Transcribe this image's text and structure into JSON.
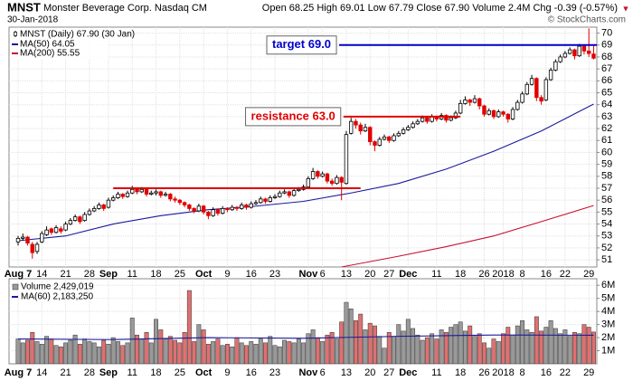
{
  "chart_data": {
    "type": "candlestick",
    "symbol": "MNST",
    "company": "Monster Beverage Corp. Nasdaq CM",
    "date": "30-Jan-2018",
    "quote": "Open 68.25 High 69.01 Low 67.79 Close 67.90 Volume 2.4M Chg -0.39 (-0.57%)",
    "change_marker": "▼",
    "credit": "© StockCharts.com",
    "legend_title": "MNST (Daily) 67.90 (30 Jan)",
    "grid": true,
    "up_color": "#000000",
    "down_color": "#e00000",
    "xticks": [
      {
        "value": 0,
        "label": "Aug 7"
      },
      {
        "value": 5,
        "label": "14"
      },
      {
        "value": 10,
        "label": "21"
      },
      {
        "value": 15,
        "label": "28"
      },
      {
        "value": 19,
        "label": "Sep"
      },
      {
        "value": 24,
        "label": "11"
      },
      {
        "value": 29,
        "label": "18"
      },
      {
        "value": 34,
        "label": "25"
      },
      {
        "value": 39,
        "label": "Oct"
      },
      {
        "value": 44,
        "label": "9"
      },
      {
        "value": 49,
        "label": "16"
      },
      {
        "value": 54,
        "label": "23"
      },
      {
        "value": 61,
        "label": "Nov"
      },
      {
        "value": 64,
        "label": "6"
      },
      {
        "value": 69,
        "label": "13"
      },
      {
        "value": 74,
        "label": "20"
      },
      {
        "value": 78,
        "label": "27"
      },
      {
        "value": 82,
        "label": "Dec"
      },
      {
        "value": 88,
        "label": "11"
      },
      {
        "value": 93,
        "label": "18"
      },
      {
        "value": 98,
        "label": "26"
      },
      {
        "value": 102,
        "label": "2018"
      },
      {
        "value": 106,
        "label": "8"
      },
      {
        "value": 111,
        "label": "16"
      },
      {
        "value": 115,
        "label": "22"
      },
      {
        "value": 120,
        "label": "29"
      }
    ],
    "ylim": [
      50.4,
      70.5
    ],
    "yticks": [
      51,
      52,
      53,
      54,
      55,
      56,
      57,
      58,
      59,
      60,
      61,
      62,
      63,
      64,
      65,
      66,
      67,
      68,
      69,
      70
    ],
    "ohlc": [
      [
        52.5,
        53.0,
        52.2,
        52.8
      ],
      [
        52.8,
        53.2,
        52.6,
        52.9
      ],
      [
        52.9,
        53.0,
        52.2,
        52.4
      ],
      [
        52.3,
        52.5,
        51.1,
        51.6
      ],
      [
        51.7,
        52.5,
        51.5,
        52.3
      ],
      [
        52.5,
        53.4,
        52.4,
        53.2
      ],
      [
        53.1,
        53.8,
        53.0,
        53.5
      ],
      [
        53.6,
        53.7,
        53.1,
        53.3
      ],
      [
        53.3,
        53.9,
        53.2,
        53.7
      ],
      [
        53.6,
        53.8,
        53.2,
        53.4
      ],
      [
        53.5,
        54.2,
        53.4,
        54.0
      ],
      [
        54.0,
        54.5,
        53.9,
        54.3
      ],
      [
        54.3,
        54.8,
        54.2,
        54.6
      ],
      [
        54.6,
        54.7,
        54.0,
        54.2
      ],
      [
        54.3,
        55.0,
        54.2,
        54.8
      ],
      [
        54.8,
        55.3,
        54.7,
        55.1
      ],
      [
        55.1,
        55.5,
        55.0,
        55.3
      ],
      [
        55.3,
        55.8,
        55.2,
        55.6
      ],
      [
        55.6,
        55.7,
        55.1,
        55.3
      ],
      [
        55.4,
        56.2,
        55.3,
        56.0
      ],
      [
        56.0,
        56.4,
        55.9,
        56.2
      ],
      [
        56.2,
        56.7,
        56.1,
        56.5
      ],
      [
        56.5,
        56.6,
        56.1,
        56.3
      ],
      [
        56.3,
        56.8,
        56.2,
        56.6
      ],
      [
        56.6,
        57.2,
        56.5,
        56.9
      ],
      [
        56.9,
        57.0,
        56.5,
        56.7
      ],
      [
        56.7,
        57.1,
        56.6,
        56.9
      ],
      [
        56.9,
        57.0,
        56.3,
        56.5
      ],
      [
        56.5,
        56.8,
        56.4,
        56.6
      ],
      [
        56.6,
        56.9,
        56.4,
        56.7
      ],
      [
        56.7,
        56.8,
        56.2,
        56.4
      ],
      [
        56.4,
        56.7,
        56.3,
        56.5
      ],
      [
        56.5,
        56.6,
        55.9,
        56.1
      ],
      [
        56.1,
        56.3,
        55.8,
        56.0
      ],
      [
        56.0,
        56.1,
        55.6,
        55.8
      ],
      [
        55.8,
        55.9,
        55.4,
        55.6
      ],
      [
        55.6,
        55.7,
        55.1,
        55.3
      ],
      [
        55.3,
        55.4,
        54.9,
        55.1
      ],
      [
        55.1,
        55.7,
        55.0,
        55.5
      ],
      [
        55.5,
        55.6,
        54.8,
        55.0
      ],
      [
        55.0,
        55.1,
        54.4,
        54.7
      ],
      [
        54.7,
        55.4,
        54.6,
        55.2
      ],
      [
        55.2,
        55.3,
        54.7,
        54.9
      ],
      [
        54.9,
        55.5,
        54.8,
        55.3
      ],
      [
        55.3,
        55.4,
        55.0,
        55.2
      ],
      [
        55.2,
        55.6,
        55.1,
        55.4
      ],
      [
        55.4,
        55.5,
        55.1,
        55.3
      ],
      [
        55.3,
        55.8,
        55.2,
        55.6
      ],
      [
        55.6,
        55.7,
        55.2,
        55.4
      ],
      [
        55.4,
        55.9,
        55.3,
        55.7
      ],
      [
        55.7,
        56.0,
        55.6,
        55.8
      ],
      [
        55.8,
        56.3,
        55.7,
        56.1
      ],
      [
        56.1,
        56.2,
        55.7,
        55.9
      ],
      [
        55.9,
        56.4,
        55.8,
        56.2
      ],
      [
        56.2,
        56.5,
        56.1,
        56.3
      ],
      [
        56.3,
        56.8,
        56.2,
        56.6
      ],
      [
        56.6,
        56.9,
        56.5,
        56.7
      ],
      [
        56.7,
        56.8,
        56.2,
        56.4
      ],
      [
        56.4,
        57.0,
        56.3,
        56.8
      ],
      [
        56.8,
        57.1,
        56.7,
        56.9
      ],
      [
        56.9,
        57.3,
        56.8,
        57.1
      ],
      [
        57.1,
        58.0,
        57.0,
        57.8
      ],
      [
        57.8,
        58.7,
        57.7,
        58.4
      ],
      [
        58.4,
        58.5,
        57.8,
        58.0
      ],
      [
        58.0,
        58.4,
        57.9,
        58.2
      ],
      [
        58.2,
        58.3,
        57.4,
        57.6
      ],
      [
        57.6,
        57.8,
        57.2,
        57.4
      ],
      [
        57.4,
        58.1,
        57.3,
        57.9
      ],
      [
        57.9,
        58.0,
        56.0,
        57.5
      ],
      [
        57.4,
        61.8,
        57.3,
        61.5
      ],
      [
        61.6,
        62.9,
        61.5,
        62.6
      ],
      [
        62.6,
        62.8,
        62.0,
        62.3
      ],
      [
        62.3,
        62.5,
        61.5,
        61.8
      ],
      [
        61.8,
        62.4,
        61.7,
        62.1
      ],
      [
        62.1,
        62.2,
        60.6,
        60.9
      ],
      [
        60.9,
        61.0,
        60.1,
        60.6
      ],
      [
        60.6,
        61.3,
        60.5,
        61.1
      ],
      [
        61.1,
        61.5,
        61.0,
        61.3
      ],
      [
        61.3,
        61.4,
        60.8,
        61.0
      ],
      [
        61.0,
        61.6,
        60.9,
        61.4
      ],
      [
        61.4,
        61.8,
        61.3,
        61.6
      ],
      [
        61.6,
        62.1,
        61.5,
        61.9
      ],
      [
        61.9,
        62.3,
        61.8,
        62.1
      ],
      [
        62.1,
        62.6,
        62.0,
        62.4
      ],
      [
        62.4,
        62.8,
        62.3,
        62.6
      ],
      [
        62.6,
        63.1,
        62.5,
        62.9
      ],
      [
        62.9,
        63.0,
        62.4,
        62.6
      ],
      [
        62.6,
        63.2,
        62.5,
        63.0
      ],
      [
        63.0,
        63.1,
        62.6,
        62.8
      ],
      [
        62.8,
        63.3,
        62.7,
        63.1
      ],
      [
        63.1,
        63.2,
        62.5,
        62.7
      ],
      [
        62.7,
        63.1,
        62.6,
        62.9
      ],
      [
        62.9,
        63.5,
        62.8,
        63.3
      ],
      [
        63.3,
        64.4,
        63.2,
        64.1
      ],
      [
        64.1,
        64.7,
        64.0,
        64.4
      ],
      [
        64.4,
        64.5,
        63.9,
        64.2
      ],
      [
        64.2,
        64.8,
        64.1,
        64.5
      ],
      [
        64.5,
        64.6,
        63.6,
        63.9
      ],
      [
        63.9,
        64.0,
        63.0,
        63.2
      ],
      [
        63.2,
        63.7,
        63.1,
        63.5
      ],
      [
        63.5,
        63.6,
        62.8,
        63.0
      ],
      [
        63.0,
        63.6,
        62.9,
        63.4
      ],
      [
        63.4,
        63.5,
        63.0,
        63.2
      ],
      [
        63.2,
        63.3,
        62.5,
        62.8
      ],
      [
        62.8,
        63.8,
        62.7,
        63.6
      ],
      [
        63.6,
        64.4,
        63.5,
        64.2
      ],
      [
        64.2,
        65.1,
        64.1,
        64.9
      ],
      [
        64.9,
        65.9,
        64.8,
        65.7
      ],
      [
        65.7,
        66.5,
        65.6,
        66.2
      ],
      [
        66.2,
        66.3,
        64.3,
        64.6
      ],
      [
        64.6,
        64.8,
        64.0,
        64.3
      ],
      [
        64.4,
        66.3,
        64.3,
        66.1
      ],
      [
        66.1,
        67.1,
        66.0,
        66.9
      ],
      [
        66.9,
        67.8,
        66.8,
        67.6
      ],
      [
        67.6,
        68.2,
        67.5,
        68.0
      ],
      [
        68.0,
        68.5,
        67.9,
        68.3
      ],
      [
        68.3,
        68.8,
        68.2,
        68.6
      ],
      [
        68.6,
        68.7,
        67.8,
        68.1
      ],
      [
        68.1,
        69.1,
        68.0,
        68.9
      ],
      [
        68.9,
        69.0,
        68.2,
        68.5
      ],
      [
        68.5,
        70.4,
        68.0,
        68.29
      ],
      [
        68.25,
        69.01,
        67.79,
        67.9
      ]
    ],
    "series": [
      {
        "name": "MA(50) 64.05",
        "color": "#1a1a9c",
        "x": [
          0,
          10,
          20,
          30,
          40,
          50,
          60,
          70,
          80,
          90,
          100,
          110,
          121
        ],
        "values": [
          52.6,
          53.0,
          54.0,
          54.7,
          55.2,
          55.5,
          55.9,
          56.6,
          57.4,
          58.6,
          60.1,
          61.8,
          64.05
        ]
      },
      {
        "name": "MA(200) 55.55",
        "color": "#c8102e",
        "x": [
          68,
          80,
          90,
          100,
          110,
          121
        ],
        "values": [
          50.4,
          51.3,
          52.1,
          53.0,
          54.2,
          55.55
        ]
      }
    ],
    "annotations": [
      {
        "label": "target 69.0",
        "value": 69.0,
        "start": 67.5,
        "end": 121.7,
        "color": "#0000cc"
      },
      {
        "label": "resistance 63.0",
        "value": 63.0,
        "start": 68.4,
        "end": 93,
        "color": "#e00000"
      },
      {
        "value": 57.0,
        "start": 20,
        "end": 72,
        "color": "#e00000"
      }
    ],
    "volume": {
      "name": "Volume 2,429,019",
      "ylim": [
        0,
        6500000
      ],
      "yticks": [
        {
          "value": 1000000,
          "label": "1M"
        },
        {
          "value": 2000000,
          "label": "2M"
        },
        {
          "value": 3000000,
          "label": "3M"
        },
        {
          "value": 4000000,
          "label": "4M"
        },
        {
          "value": 5000000,
          "label": "5M"
        },
        {
          "value": 6000000,
          "label": "6M"
        }
      ],
      "up_color": "#999999",
      "down_color": "#e07070",
      "values": [
        1900000,
        1600000,
        1800000,
        2400000,
        1700000,
        1500000,
        2100000,
        1900000,
        1400000,
        1300000,
        1600000,
        1800000,
        2200000,
        1500000,
        1900000,
        1700000,
        1600000,
        1300000,
        1800000,
        1500000,
        2000000,
        1700000,
        1400000,
        1600000,
        3500000,
        2200000,
        1900000,
        2400000,
        1600000,
        3400000,
        2600000,
        1900000,
        2100000,
        1800000,
        1600000,
        2400000,
        5600000,
        1700000,
        3000000,
        2600000,
        1500000,
        1700000,
        1900000,
        1400000,
        1500000,
        1300000,
        2000000,
        1600000,
        1400000,
        1700000,
        1500000,
        1900000,
        1600000,
        2100000,
        1400000,
        1300000,
        1800000,
        1700000,
        1600000,
        1900000,
        1600000,
        2300000,
        2600000,
        2000000,
        1700000,
        2200000,
        2400000,
        1900000,
        3200000,
        4700000,
        4200000,
        3300000,
        3800000,
        2600000,
        3100000,
        2900000,
        2100000,
        1200000,
        2400000,
        2100000,
        3000000,
        2500000,
        3400000,
        2700000,
        2200000,
        1800000,
        2000000,
        2300000,
        1900000,
        2600000,
        2400000,
        2800000,
        3000000,
        3200000,
        2500000,
        2900000,
        2100000,
        2300000,
        1600000,
        1200000,
        1900000,
        1700000,
        2300000,
        2800000,
        2200000,
        2900000,
        3300000,
        2600000,
        2400000,
        3600000,
        2500000,
        2800000,
        3300000,
        2700000,
        2300000,
        2600000,
        2100000,
        2400000,
        2300000,
        3000000,
        2800000,
        2429019
      ],
      "series": [
        {
          "name": "MA(60) 2,183,250",
          "color": "#1a1a9c",
          "x": [
            0,
            20,
            40,
            60,
            80,
            100,
            121
          ],
          "values": [
            1900000,
            1850000,
            2000000,
            1950000,
            2100000,
            2200000,
            2183250
          ]
        }
      ]
    }
  }
}
